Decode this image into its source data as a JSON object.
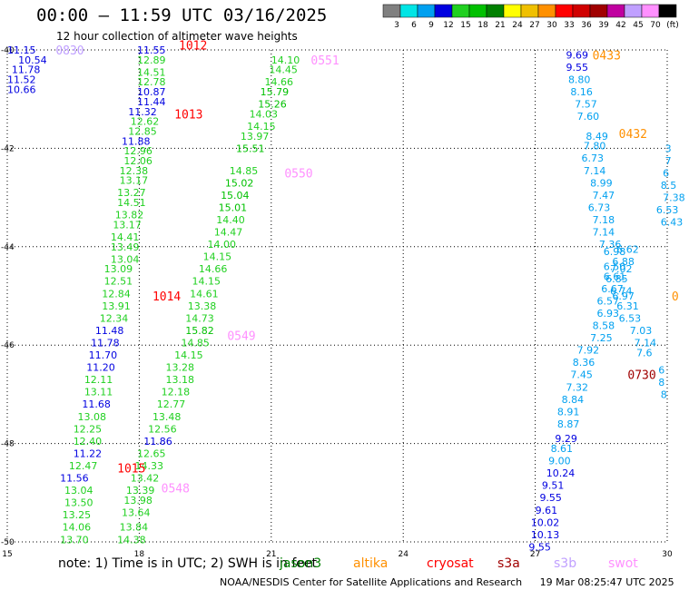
{
  "header": {
    "title": "00:00 – 11:59 UTC 03/16/2025",
    "subtitle": "12 hour collection of altimeter wave heights"
  },
  "colorbar": {
    "ticks": [
      "3",
      "6",
      "9",
      "12",
      "15",
      "18",
      "21",
      "24",
      "27",
      "30",
      "33",
      "36",
      "39",
      "42",
      "45",
      "70",
      "(ft)"
    ],
    "colors": [
      "#808080",
      "#00e5e5",
      "#00a0f0",
      "#0000e0",
      "#20d020",
      "#00c000",
      "#008000",
      "#ffff00",
      "#f0c000",
      "#ff9000",
      "#ff0000",
      "#d00000",
      "#a00000",
      "#c000a0",
      "#c0a0ff",
      "#ff90ff",
      "#000000"
    ]
  },
  "footer": {
    "note": "note: 1) Time is in UTC; 2) SWH is in feet",
    "satellites": [
      {
        "name": "jason3",
        "color": "#008000"
      },
      {
        "name": "altika",
        "color": "#ff9000"
      },
      {
        "name": "cryosat",
        "color": "#ff0000"
      },
      {
        "name": "s3a",
        "color": "#a00000"
      },
      {
        "name": "s3b",
        "color": "#c0a0ff"
      },
      {
        "name": "swot",
        "color": "#ff90ff"
      }
    ],
    "credit": "NOAA/NESDIS Center for Satellite Applications and Research",
    "generated": "19 Mar 08:25:47 UTC 2025"
  },
  "chart_data": {
    "type": "scatter",
    "title": "00:00 – 11:59 UTC 03/16/2025",
    "subtitle": "12 hour collection of altimeter wave heights",
    "xlim": [
      15,
      30
    ],
    "ylim": [
      -50,
      -40
    ],
    "x_ticks": [
      "15",
      "18",
      "21",
      "24",
      "27",
      "30"
    ],
    "y_ticks": [
      "-40",
      "-42",
      "-44",
      "-46",
      "-48",
      "-50"
    ],
    "grid": true,
    "legend": "bottom",
    "passes": [
      {
        "label": "0830",
        "lon": 16.1,
        "lat": -40.0,
        "color": "#c0a0ff"
      },
      {
        "label": "1012",
        "lon": 18.9,
        "lat": -39.9,
        "color": "#ff0000"
      },
      {
        "label": "1013",
        "lon": 18.8,
        "lat": -41.3,
        "color": "#ff0000"
      },
      {
        "label": "1014",
        "lon": 18.3,
        "lat": -45.0,
        "color": "#ff0000"
      },
      {
        "label": "1015",
        "lon": 17.5,
        "lat": -48.5,
        "color": "#ff0000"
      },
      {
        "label": "0551",
        "lon": 21.9,
        "lat": -40.2,
        "color": "#ff90ff"
      },
      {
        "label": "0550",
        "lon": 21.3,
        "lat": -42.5,
        "color": "#ff90ff"
      },
      {
        "label": "0549",
        "lon": 20.0,
        "lat": -45.8,
        "color": "#ff90ff"
      },
      {
        "label": "0548",
        "lon": 18.5,
        "lat": -48.9,
        "color": "#ff90ff"
      },
      {
        "label": "0433",
        "lon": 28.3,
        "lat": -40.1,
        "color": "#ff9000"
      },
      {
        "label": "0432",
        "lon": 28.9,
        "lat": -41.7,
        "color": "#ff9000"
      },
      {
        "label": "0730",
        "lon": 29.1,
        "lat": -46.6,
        "color": "#a00000"
      },
      {
        "label": "0",
        "lon": 30.1,
        "lat": -45.0,
        "color": "#ff9000"
      }
    ],
    "points": [
      {
        "lon": 15.0,
        "lat": -40.0,
        "v": "11.15",
        "c": "#0000e0"
      },
      {
        "lon": 15.25,
        "lat": -40.2,
        "v": "10.54",
        "c": "#0000e0"
      },
      {
        "lon": 15.1,
        "lat": -40.4,
        "v": "11.78",
        "c": "#0000e0"
      },
      {
        "lon": 15.0,
        "lat": -40.6,
        "v": "11.52",
        "c": "#0000e0"
      },
      {
        "lon": 15.0,
        "lat": -40.8,
        "v": "10.66",
        "c": "#0000e0"
      },
      {
        "lon": 17.95,
        "lat": -40.0,
        "v": "11.55",
        "c": "#0000e0"
      },
      {
        "lon": 17.95,
        "lat": -40.2,
        "v": "12.89",
        "c": "#20d020"
      },
      {
        "lon": 17.95,
        "lat": -40.45,
        "v": "14.51",
        "c": "#20d020"
      },
      {
        "lon": 17.95,
        "lat": -40.65,
        "v": "12.78",
        "c": "#20d020"
      },
      {
        "lon": 17.95,
        "lat": -40.85,
        "v": "10.87",
        "c": "#0000e0"
      },
      {
        "lon": 17.95,
        "lat": -41.05,
        "v": "11.44",
        "c": "#0000e0"
      },
      {
        "lon": 17.75,
        "lat": -41.25,
        "v": "11.32",
        "c": "#0000e0"
      },
      {
        "lon": 17.8,
        "lat": -41.45,
        "v": "12.62",
        "c": "#20d020"
      },
      {
        "lon": 17.75,
        "lat": -41.65,
        "v": "12.85",
        "c": "#20d020"
      },
      {
        "lon": 17.6,
        "lat": -41.85,
        "v": "11.88",
        "c": "#0000e0"
      },
      {
        "lon": 17.65,
        "lat": -42.05,
        "v": "12.96",
        "c": "#20d020"
      },
      {
        "lon": 17.65,
        "lat": -42.25,
        "v": "12.06",
        "c": "#20d020"
      },
      {
        "lon": 17.55,
        "lat": -42.45,
        "v": "12.38",
        "c": "#20d020"
      },
      {
        "lon": 17.55,
        "lat": -42.65,
        "v": "13.17",
        "c": "#20d020"
      },
      {
        "lon": 17.5,
        "lat": -42.9,
        "v": "13.27",
        "c": "#20d020"
      },
      {
        "lon": 17.5,
        "lat": -43.1,
        "v": "14.51",
        "c": "#20d020"
      },
      {
        "lon": 17.45,
        "lat": -43.35,
        "v": "13.82",
        "c": "#20d020"
      },
      {
        "lon": 17.4,
        "lat": -43.55,
        "v": "13.17",
        "c": "#20d020"
      },
      {
        "lon": 17.35,
        "lat": -43.8,
        "v": "14.41",
        "c": "#20d020"
      },
      {
        "lon": 17.35,
        "lat": -44.0,
        "v": "13.49",
        "c": "#20d020"
      },
      {
        "lon": 17.35,
        "lat": -44.25,
        "v": "13.04",
        "c": "#20d020"
      },
      {
        "lon": 17.2,
        "lat": -44.45,
        "v": "13.09",
        "c": "#20d020"
      },
      {
        "lon": 17.2,
        "lat": -44.7,
        "v": "12.51",
        "c": "#20d020"
      },
      {
        "lon": 17.15,
        "lat": -44.95,
        "v": "12.84",
        "c": "#20d020"
      },
      {
        "lon": 17.15,
        "lat": -45.2,
        "v": "13.91",
        "c": "#20d020"
      },
      {
        "lon": 17.1,
        "lat": -45.45,
        "v": "12.34",
        "c": "#20d020"
      },
      {
        "lon": 17.0,
        "lat": -45.7,
        "v": "11.48",
        "c": "#0000e0"
      },
      {
        "lon": 16.9,
        "lat": -45.95,
        "v": "11.78",
        "c": "#0000e0"
      },
      {
        "lon": 16.85,
        "lat": -46.2,
        "v": "11.70",
        "c": "#0000e0"
      },
      {
        "lon": 16.8,
        "lat": -46.45,
        "v": "11.20",
        "c": "#0000e0"
      },
      {
        "lon": 16.75,
        "lat": -46.7,
        "v": "12.11",
        "c": "#20d020"
      },
      {
        "lon": 16.75,
        "lat": -46.95,
        "v": "13.11",
        "c": "#20d020"
      },
      {
        "lon": 16.7,
        "lat": -47.2,
        "v": "11.68",
        "c": "#0000e0"
      },
      {
        "lon": 16.6,
        "lat": -47.45,
        "v": "13.08",
        "c": "#20d020"
      },
      {
        "lon": 16.5,
        "lat": -47.7,
        "v": "12.25",
        "c": "#20d020"
      },
      {
        "lon": 16.5,
        "lat": -47.95,
        "v": "12.40",
        "c": "#20d020"
      },
      {
        "lon": 16.5,
        "lat": -48.2,
        "v": "11.22",
        "c": "#0000e0"
      },
      {
        "lon": 16.4,
        "lat": -48.45,
        "v": "12.47",
        "c": "#20d020"
      },
      {
        "lon": 16.2,
        "lat": -48.7,
        "v": "11.56",
        "c": "#0000e0"
      },
      {
        "lon": 16.3,
        "lat": -48.95,
        "v": "13.04",
        "c": "#20d020"
      },
      {
        "lon": 16.3,
        "lat": -49.2,
        "v": "13.50",
        "c": "#20d020"
      },
      {
        "lon": 16.25,
        "lat": -49.45,
        "v": "13.25",
        "c": "#20d020"
      },
      {
        "lon": 16.25,
        "lat": -49.7,
        "v": "14.06",
        "c": "#20d020"
      },
      {
        "lon": 16.2,
        "lat": -49.95,
        "v": "13.70",
        "c": "#20d020"
      },
      {
        "lon": 21.0,
        "lat": -40.2,
        "v": "14.10",
        "c": "#20d020"
      },
      {
        "lon": 20.95,
        "lat": -40.4,
        "v": "14.45",
        "c": "#20d020"
      },
      {
        "lon": 20.85,
        "lat": -40.65,
        "v": "14.66",
        "c": "#20d020"
      },
      {
        "lon": 20.75,
        "lat": -40.85,
        "v": "15.79",
        "c": "#00c000"
      },
      {
        "lon": 20.7,
        "lat": -41.1,
        "v": "15.26",
        "c": "#00c000"
      },
      {
        "lon": 20.5,
        "lat": -41.3,
        "v": "14.03",
        "c": "#20d020"
      },
      {
        "lon": 20.45,
        "lat": -41.55,
        "v": "14.15",
        "c": "#20d020"
      },
      {
        "lon": 20.3,
        "lat": -41.75,
        "v": "13.97",
        "c": "#20d020"
      },
      {
        "lon": 20.2,
        "lat": -42.0,
        "v": "15.51",
        "c": "#00c000"
      },
      {
        "lon": 20.05,
        "lat": -42.45,
        "v": "14.85",
        "c": "#20d020"
      },
      {
        "lon": 19.95,
        "lat": -42.7,
        "v": "15.02",
        "c": "#00c000"
      },
      {
        "lon": 19.85,
        "lat": -42.95,
        "v": "15.04",
        "c": "#00c000"
      },
      {
        "lon": 19.8,
        "lat": -43.2,
        "v": "15.01",
        "c": "#00c000"
      },
      {
        "lon": 19.75,
        "lat": -43.45,
        "v": "14.40",
        "c": "#20d020"
      },
      {
        "lon": 19.7,
        "lat": -43.7,
        "v": "14.47",
        "c": "#20d020"
      },
      {
        "lon": 19.55,
        "lat": -43.95,
        "v": "14.00",
        "c": "#20d020"
      },
      {
        "lon": 19.45,
        "lat": -44.2,
        "v": "14.15",
        "c": "#20d020"
      },
      {
        "lon": 19.35,
        "lat": -44.45,
        "v": "14.66",
        "c": "#20d020"
      },
      {
        "lon": 19.2,
        "lat": -44.7,
        "v": "14.15",
        "c": "#20d020"
      },
      {
        "lon": 19.15,
        "lat": -44.95,
        "v": "14.61",
        "c": "#20d020"
      },
      {
        "lon": 19.1,
        "lat": -45.2,
        "v": "13.38",
        "c": "#20d020"
      },
      {
        "lon": 19.05,
        "lat": -45.45,
        "v": "14.73",
        "c": "#20d020"
      },
      {
        "lon": 19.05,
        "lat": -45.7,
        "v": "15.82",
        "c": "#00c000"
      },
      {
        "lon": 18.95,
        "lat": -45.95,
        "v": "14.85",
        "c": "#20d020"
      },
      {
        "lon": 18.8,
        "lat": -46.2,
        "v": "14.15",
        "c": "#20d020"
      },
      {
        "lon": 18.6,
        "lat": -46.45,
        "v": "13.28",
        "c": "#20d020"
      },
      {
        "lon": 18.6,
        "lat": -46.7,
        "v": "13.18",
        "c": "#20d020"
      },
      {
        "lon": 18.5,
        "lat": -46.95,
        "v": "12.18",
        "c": "#20d020"
      },
      {
        "lon": 18.4,
        "lat": -47.2,
        "v": "12.77",
        "c": "#20d020"
      },
      {
        "lon": 18.3,
        "lat": -47.45,
        "v": "13.48",
        "c": "#20d020"
      },
      {
        "lon": 18.2,
        "lat": -47.7,
        "v": "12.56",
        "c": "#20d020"
      },
      {
        "lon": 18.1,
        "lat": -47.95,
        "v": "11.86",
        "c": "#0000e0"
      },
      {
        "lon": 17.95,
        "lat": -48.2,
        "v": "12.65",
        "c": "#20d020"
      },
      {
        "lon": 17.9,
        "lat": -48.45,
        "v": "14.33",
        "c": "#20d020"
      },
      {
        "lon": 17.8,
        "lat": -48.7,
        "v": "13.42",
        "c": "#20d020"
      },
      {
        "lon": 17.7,
        "lat": -48.95,
        "v": "13.39",
        "c": "#20d020"
      },
      {
        "lon": 17.65,
        "lat": -49.15,
        "v": "13.98",
        "c": "#20d020"
      },
      {
        "lon": 17.6,
        "lat": -49.4,
        "v": "13.64",
        "c": "#20d020"
      },
      {
        "lon": 17.55,
        "lat": -49.7,
        "v": "13.84",
        "c": "#20d020"
      },
      {
        "lon": 17.5,
        "lat": -49.95,
        "v": "14.38",
        "c": "#20d020"
      },
      {
        "lon": 27.7,
        "lat": -40.1,
        "v": "9.69",
        "c": "#0000e0"
      },
      {
        "lon": 27.7,
        "lat": -40.35,
        "v": "9.55",
        "c": "#0000e0"
      },
      {
        "lon": 27.75,
        "lat": -40.6,
        "v": "8.80",
        "c": "#00a0f0"
      },
      {
        "lon": 27.8,
        "lat": -40.85,
        "v": "8.16",
        "c": "#00a0f0"
      },
      {
        "lon": 27.9,
        "lat": -41.1,
        "v": "7.57",
        "c": "#00a0f0"
      },
      {
        "lon": 27.95,
        "lat": -41.35,
        "v": "7.60",
        "c": "#00a0f0"
      },
      {
        "lon": 28.15,
        "lat": -41.75,
        "v": "8.49",
        "c": "#00a0f0"
      },
      {
        "lon": 28.1,
        "lat": -41.95,
        "v": "7.80",
        "c": "#00a0f0"
      },
      {
        "lon": 28.05,
        "lat": -42.2,
        "v": "6.73",
        "c": "#00a0f0"
      },
      {
        "lon": 28.1,
        "lat": -42.45,
        "v": "7.14",
        "c": "#00a0f0"
      },
      {
        "lon": 28.25,
        "lat": -42.7,
        "v": "8.99",
        "c": "#00a0f0"
      },
      {
        "lon": 28.3,
        "lat": -42.95,
        "v": "7.47",
        "c": "#00a0f0"
      },
      {
        "lon": 28.2,
        "lat": -43.2,
        "v": "6.73",
        "c": "#00a0f0"
      },
      {
        "lon": 28.3,
        "lat": -43.45,
        "v": "7.18",
        "c": "#00a0f0"
      },
      {
        "lon": 28.3,
        "lat": -43.7,
        "v": "7.14",
        "c": "#00a0f0"
      },
      {
        "lon": 28.45,
        "lat": -43.95,
        "v": "7.36",
        "c": "#00a0f0"
      },
      {
        "lon": 28.55,
        "lat": -44.1,
        "v": "6.98",
        "c": "#00a0f0"
      },
      {
        "lon": 28.85,
        "lat": -44.05,
        "v": "6.62",
        "c": "#00a0f0"
      },
      {
        "lon": 28.75,
        "lat": -44.3,
        "v": "6.88",
        "c": "#00a0f0"
      },
      {
        "lon": 28.55,
        "lat": -44.4,
        "v": "6.50",
        "c": "#00a0f0"
      },
      {
        "lon": 28.7,
        "lat": -44.45,
        "v": "7.02",
        "c": "#00a0f0"
      },
      {
        "lon": 28.55,
        "lat": -44.6,
        "v": "6.61",
        "c": "#00a0f0"
      },
      {
        "lon": 28.6,
        "lat": -44.65,
        "v": "6.85",
        "c": "#00a0f0"
      },
      {
        "lon": 28.5,
        "lat": -44.85,
        "v": "6.67",
        "c": "#00a0f0"
      },
      {
        "lon": 28.7,
        "lat": -44.9,
        "v": "6.74",
        "c": "#00a0f0"
      },
      {
        "lon": 28.75,
        "lat": -45.0,
        "v": "6.97",
        "c": "#00a0f0"
      },
      {
        "lon": 28.4,
        "lat": -45.1,
        "v": "6.57",
        "c": "#00a0f0"
      },
      {
        "lon": 28.85,
        "lat": -45.2,
        "v": "6.31",
        "c": "#00a0f0"
      },
      {
        "lon": 28.4,
        "lat": -45.35,
        "v": "6.93",
        "c": "#00a0f0"
      },
      {
        "lon": 28.9,
        "lat": -45.45,
        "v": "6.53",
        "c": "#00a0f0"
      },
      {
        "lon": 28.3,
        "lat": -45.6,
        "v": "8.58",
        "c": "#00a0f0"
      },
      {
        "lon": 29.15,
        "lat": -45.7,
        "v": "7.03",
        "c": "#00a0f0"
      },
      {
        "lon": 28.25,
        "lat": -45.85,
        "v": "7.25",
        "c": "#00a0f0"
      },
      {
        "lon": 29.25,
        "lat": -45.95,
        "v": "7.14",
        "c": "#00a0f0"
      },
      {
        "lon": 27.95,
        "lat": -46.1,
        "v": "7.92",
        "c": "#00a0f0"
      },
      {
        "lon": 29.3,
        "lat": -46.15,
        "v": "7.6",
        "c": "#00a0f0"
      },
      {
        "lon": 27.85,
        "lat": -46.35,
        "v": "8.36",
        "c": "#00a0f0"
      },
      {
        "lon": 27.8,
        "lat": -46.6,
        "v": "7.45",
        "c": "#00a0f0"
      },
      {
        "lon": 29.8,
        "lat": -46.5,
        "v": "6",
        "c": "#00a0f0"
      },
      {
        "lon": 27.7,
        "lat": -46.85,
        "v": "7.32",
        "c": "#00a0f0"
      },
      {
        "lon": 29.8,
        "lat": -46.75,
        "v": "8",
        "c": "#00a0f0"
      },
      {
        "lon": 27.6,
        "lat": -47.1,
        "v": "8.84",
        "c": "#00a0f0"
      },
      {
        "lon": 29.85,
        "lat": -47.0,
        "v": "8",
        "c": "#00a0f0"
      },
      {
        "lon": 27.5,
        "lat": -47.35,
        "v": "8.91",
        "c": "#00a0f0"
      },
      {
        "lon": 27.5,
        "lat": -47.6,
        "v": "8.87",
        "c": "#00a0f0"
      },
      {
        "lon": 27.45,
        "lat": -47.9,
        "v": "9.29",
        "c": "#0000e0"
      },
      {
        "lon": 27.35,
        "lat": -48.1,
        "v": "8.61",
        "c": "#00a0f0"
      },
      {
        "lon": 27.3,
        "lat": -48.35,
        "v": "9.00",
        "c": "#00a0f0"
      },
      {
        "lon": 27.25,
        "lat": -48.6,
        "v": "10.24",
        "c": "#0000e0"
      },
      {
        "lon": 27.15,
        "lat": -48.85,
        "v": "9.51",
        "c": "#0000e0"
      },
      {
        "lon": 27.1,
        "lat": -49.1,
        "v": "9.55",
        "c": "#0000e0"
      },
      {
        "lon": 27.0,
        "lat": -49.35,
        "v": "9.61",
        "c": "#0000e0"
      },
      {
        "lon": 26.9,
        "lat": -49.6,
        "v": "10.02",
        "c": "#0000e0"
      },
      {
        "lon": 26.9,
        "lat": -49.85,
        "v": "10.13",
        "c": "#0000e0"
      },
      {
        "lon": 26.85,
        "lat": -50.1,
        "v": "9.55",
        "c": "#0000e0"
      },
      {
        "lon": 29.95,
        "lat": -42.0,
        "v": "3",
        "c": "#00a0f0"
      },
      {
        "lon": 29.95,
        "lat": -42.25,
        "v": "7",
        "c": "#00a0f0"
      },
      {
        "lon": 29.9,
        "lat": -42.5,
        "v": "6",
        "c": "#00a0f0"
      },
      {
        "lon": 29.85,
        "lat": -42.75,
        "v": "8.5",
        "c": "#00a0f0"
      },
      {
        "lon": 29.9,
        "lat": -43.0,
        "v": "7.38",
        "c": "#00a0f0"
      },
      {
        "lon": 29.75,
        "lat": -43.25,
        "v": "6.53",
        "c": "#00a0f0"
      },
      {
        "lon": 29.85,
        "lat": -43.5,
        "v": "6.43",
        "c": "#00a0f0"
      }
    ]
  }
}
